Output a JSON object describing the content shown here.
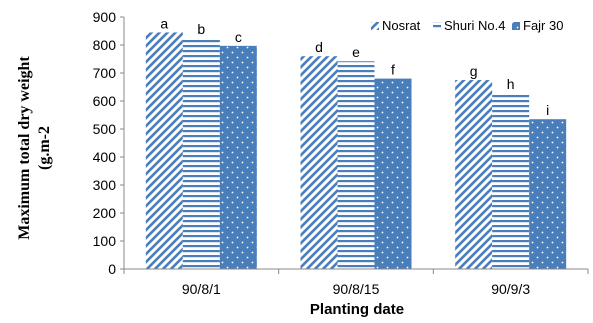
{
  "chart_data": {
    "type": "bar",
    "xlabel": "Planting date",
    "ylabel_lines": [
      "Maximum total dry weight",
      "(g.m-2"
    ],
    "categories": [
      "90/8/1",
      "90/8/15",
      "90/9/3"
    ],
    "ylim": [
      0,
      900
    ],
    "yticks": [
      0,
      100,
      200,
      300,
      400,
      500,
      600,
      700,
      800,
      900
    ],
    "grid": false,
    "legend_position": "top-right",
    "series": [
      {
        "name": "Nosrat",
        "values": [
          845,
          760,
          675
        ],
        "letters": [
          "a",
          "d",
          "g"
        ],
        "color": "#4a7ebb",
        "pattern": "diagonal"
      },
      {
        "name": "Shuri No.4",
        "values": [
          825,
          742,
          628
        ],
        "letters": [
          "b",
          "e",
          "h"
        ],
        "color": "#4a7ebb",
        "pattern": "horizontal"
      },
      {
        "name": "Fajr 30",
        "values": [
          797,
          680,
          535
        ],
        "letters": [
          "c",
          "f",
          "i"
        ],
        "color": "#4a7ebb",
        "pattern": "dotted"
      }
    ]
  }
}
